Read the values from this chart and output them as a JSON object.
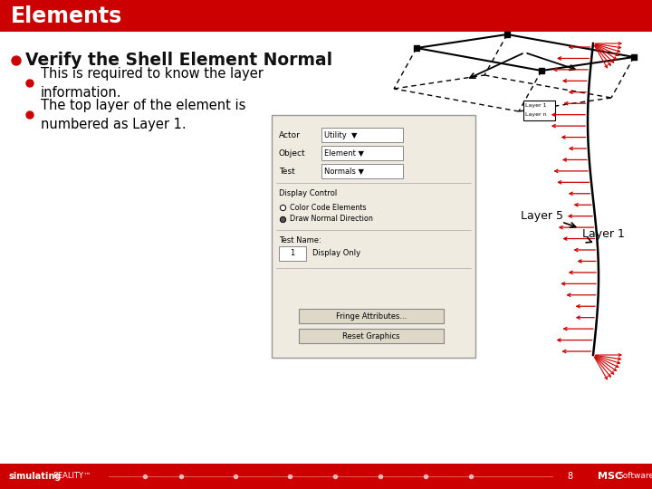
{
  "title": "Elements",
  "title_bg": "#cc0000",
  "title_text_color": "#ffffff",
  "slide_bg": "#ffffff",
  "footer_bg": "#cc0000",
  "footer_text_bold": "simulating",
  "footer_text_normal": "REALITY™",
  "footer_text_color": "#ffffff",
  "page_number": "8",
  "bullet1": "Verify the Shell Element Normal",
  "bullet1_color": "#cc0000",
  "sub_bullet_color": "#cc0000",
  "sub_text_color": "#000000",
  "annotation_layer5": "Layer 5",
  "annotation_layer1": "Layer 1",
  "dialog_bg": "#f0ebe0",
  "dialog_edge": "#999999"
}
